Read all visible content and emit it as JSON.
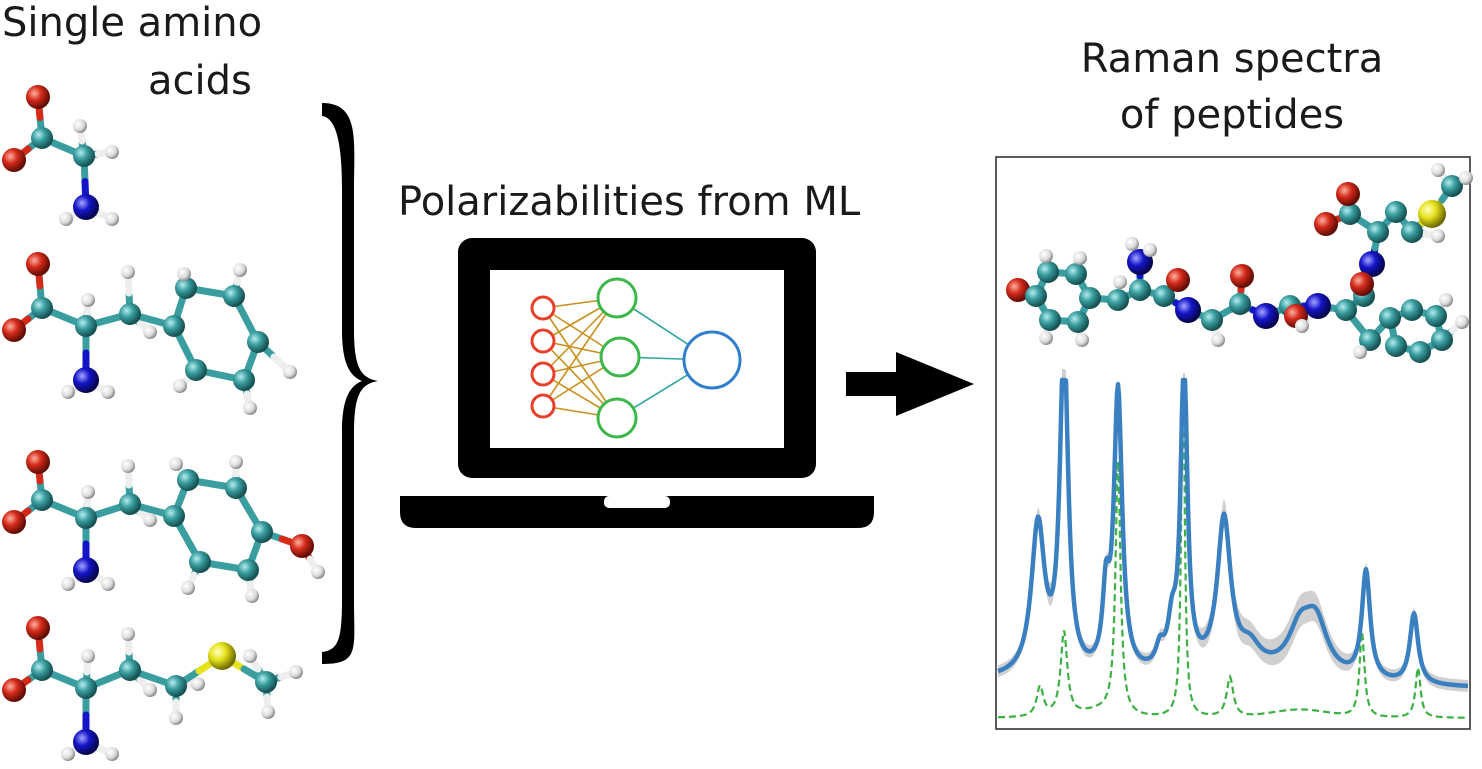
{
  "left_title": {
    "line1": "Single amino",
    "line2": "acids"
  },
  "center_title": "Polarizabilities from ML",
  "right_title": {
    "line1": "Raman spectra",
    "line2": "of peptides"
  },
  "amino_acids": [
    {
      "name": "glycine"
    },
    {
      "name": "phenylalanine"
    },
    {
      "name": "tyrosine"
    },
    {
      "name": "methionine"
    }
  ],
  "neural_network": {
    "layers": [
      4,
      3,
      1
    ],
    "colors": {
      "input": "#e8402a",
      "hidden": "#3cb84a",
      "output": "#2f7fcc"
    }
  },
  "atom_colors": {
    "C": "#3a9ea0",
    "O": "#d42a1a",
    "N": "#1414c8",
    "H": "#eeeeee",
    "S": "#e6e21e"
  },
  "spectrum_colors": {
    "ml": "#3a80c0",
    "band": "#c8c8c8",
    "reference": "#3cb043"
  }
}
